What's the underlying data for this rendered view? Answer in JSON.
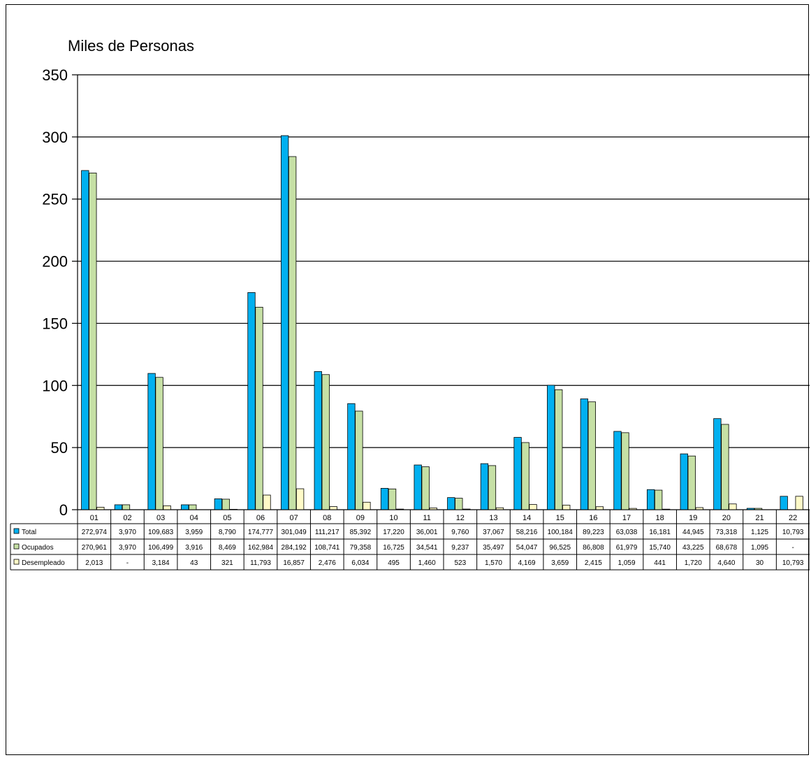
{
  "chart_data": {
    "type": "bar",
    "ylabel": "Miles de Personas",
    "ylim": [
      0,
      350
    ],
    "yticks": [
      0,
      50,
      100,
      150,
      200,
      250,
      300,
      350
    ],
    "grid": true,
    "categories": [
      "01",
      "02",
      "03",
      "04",
      "05",
      "06",
      "07",
      "08",
      "09",
      "10",
      "11",
      "12",
      "13",
      "14",
      "15",
      "16",
      "17",
      "18",
      "19",
      "20",
      "21",
      "22"
    ],
    "series": [
      {
        "name": "Total",
        "color": "#00B0F0",
        "values": [
          272.974,
          3.97,
          109.683,
          3.959,
          8.79,
          174.777,
          301.049,
          111.217,
          85.392,
          17.22,
          36.001,
          9.76,
          37.067,
          58.216,
          100.184,
          89.223,
          63.038,
          16.181,
          44.945,
          73.318,
          1.125,
          10.793
        ],
        "labels": [
          "272,974",
          "3,970",
          "109,683",
          "3,959",
          "8,790",
          "174,777",
          "301,049",
          "111,217",
          "85,392",
          "17,220",
          "36,001",
          "9,760",
          "37,067",
          "58,216",
          "100,184",
          "89,223",
          "63,038",
          "16,181",
          "44,945",
          "73,318",
          "1,125",
          "10,793"
        ]
      },
      {
        "name": "Ocupados",
        "color": "#C6E0A5",
        "values": [
          270.961,
          3.97,
          106.499,
          3.916,
          8.469,
          162.984,
          284.192,
          108.741,
          79.358,
          16.725,
          34.541,
          9.237,
          35.497,
          54.047,
          96.525,
          86.808,
          61.979,
          15.74,
          43.225,
          68.678,
          1.095,
          0
        ],
        "labels": [
          "270,961",
          "3,970",
          "106,499",
          "3,916",
          "8,469",
          "162,984",
          "284,192",
          "108,741",
          "79,358",
          "16,725",
          "34,541",
          "9,237",
          "35,497",
          "54,047",
          "96,525",
          "86,808",
          "61,979",
          "15,740",
          "43,225",
          "68,678",
          "1,095",
          "-"
        ]
      },
      {
        "name": "Desempleado",
        "color": "#FFFAC8",
        "values": [
          2.013,
          0,
          3.184,
          0.043,
          0.321,
          11.793,
          16.857,
          2.476,
          6.034,
          0.495,
          1.46,
          0.523,
          1.57,
          4.169,
          3.659,
          2.415,
          1.059,
          0.441,
          1.72,
          4.64,
          0.03,
          10.793
        ],
        "labels": [
          "2,013",
          "-",
          "3,184",
          "43",
          "321",
          "11,793",
          "16,857",
          "2,476",
          "6,034",
          "495",
          "1,460",
          "523",
          "1,570",
          "4,169",
          "3,659",
          "2,415",
          "1,059",
          "441",
          "1,720",
          "4,640",
          "30",
          "10,793"
        ]
      }
    ]
  }
}
